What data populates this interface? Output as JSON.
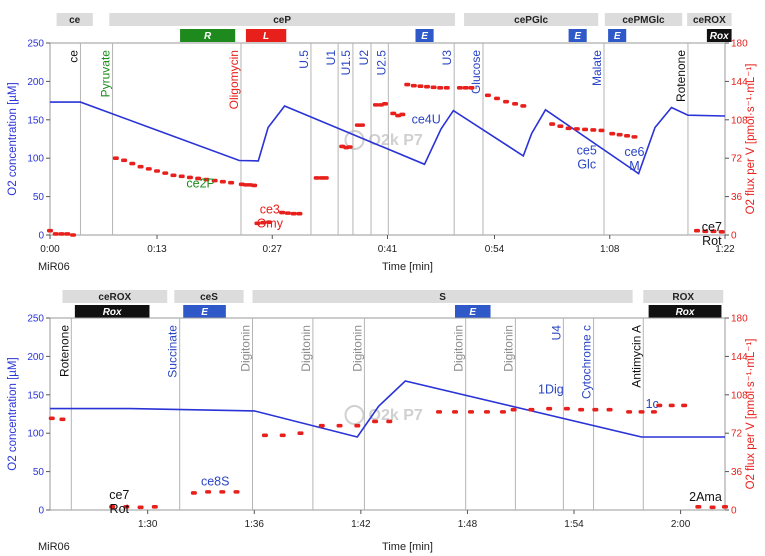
{
  "colors": {
    "o2_line": "#2a33d6",
    "flux_points": "#e8201c",
    "blue_text": "#2a45c4",
    "red_text": "#e8201c",
    "green_text": "#1e8f1e",
    "gray_text": "#8c8c8c",
    "black_text": "#111111",
    "bar_gray": "#dcdcdc",
    "bar_green": "#1e8a1e",
    "bar_red": "#e8201c",
    "bar_blue": "#2f58c8",
    "bar_black": "#111111",
    "event_line": "#b4b4b4"
  },
  "watermark": "O2k P7",
  "chart_data": [
    {
      "type": "line",
      "medium": "MiR06",
      "xlabel": "Time [min]",
      "ylabel_left": "O2 concentration [µM]",
      "ylabel_right": "O2 flux per V [pmol·s⁻¹·mL⁻¹]",
      "ylim_left": [
        0,
        250
      ],
      "ylim_right": [
        0,
        180
      ],
      "xlim": [
        0,
        82
      ],
      "x_ticks": [
        {
          "v": 0,
          "label": "0:00"
        },
        {
          "v": 13,
          "label": "0:13"
        },
        {
          "v": 27,
          "label": "0:27"
        },
        {
          "v": 41,
          "label": "0:41"
        },
        {
          "v": 54,
          "label": "0:54"
        },
        {
          "v": 68,
          "label": "1:08"
        },
        {
          "v": 82,
          "label": "1:22"
        }
      ],
      "y_ticks_left": [
        0,
        50,
        100,
        150,
        200,
        250
      ],
      "y_ticks_right": [
        0,
        36,
        72,
        108,
        144,
        180
      ],
      "states": [
        {
          "label": "ce",
          "start": 0.8,
          "end": 5.2
        },
        {
          "label": "ceP",
          "start": 7.2,
          "end": 49.2
        },
        {
          "label": "cePGlc",
          "start": 50.3,
          "end": 66.6
        },
        {
          "label": "cePMGlc",
          "start": 67.4,
          "end": 76.8
        },
        {
          "label": "ceROX",
          "start": 77.4,
          "end": 82.8
        }
      ],
      "tags": [
        {
          "label": "R",
          "start": 15.8,
          "end": 22.5,
          "color": "#1e8a1e"
        },
        {
          "label": "L",
          "start": 23.8,
          "end": 28.7,
          "color": "#e8201c"
        },
        {
          "label": "E",
          "start": 44.4,
          "end": 46.6,
          "color": "#2f58c8"
        },
        {
          "label": "E",
          "start": 63.0,
          "end": 65.2,
          "color": "#2f58c8"
        },
        {
          "label": "E",
          "start": 67.8,
          "end": 70.0,
          "color": "#2f58c8"
        },
        {
          "label": "Rox",
          "start": 79.8,
          "end": 82.8,
          "color": "#111111"
        }
      ],
      "events": [
        {
          "t": 3.7,
          "label": "ce",
          "color": "#111111"
        },
        {
          "t": 7.6,
          "label": "Pyruvate",
          "color": "#1e8f1e"
        },
        {
          "t": 23.2,
          "label": "Oligomycin",
          "color": "#e8201c"
        },
        {
          "t": 31.7,
          "label": "U.5",
          "color": "#2a45c4"
        },
        {
          "t": 35.0,
          "label": "U1",
          "color": "#2a45c4"
        },
        {
          "t": 36.8,
          "label": "U1.5",
          "color": "#2a45c4"
        },
        {
          "t": 39.0,
          "label": "U2",
          "color": "#2a45c4"
        },
        {
          "t": 41.1,
          "label": "U2.5",
          "color": "#2a45c4"
        },
        {
          "t": 49.1,
          "label": "U3",
          "color": "#2a45c4"
        },
        {
          "t": 52.6,
          "label": "Glucose",
          "color": "#2a45c4"
        },
        {
          "t": 67.3,
          "label": "Malate",
          "color": "#2a45c4"
        },
        {
          "t": 77.5,
          "label": "Rotenone",
          "color": "#111111"
        }
      ],
      "o2_series": [
        [
          0,
          173
        ],
        [
          3.7,
          173
        ],
        [
          23,
          97
        ],
        [
          25.3,
          96.5
        ],
        [
          26.5,
          140
        ],
        [
          28.5,
          168
        ],
        [
          45.5,
          92
        ],
        [
          47.5,
          138
        ],
        [
          49,
          162
        ],
        [
          57.5,
          103
        ],
        [
          58.5,
          132
        ],
        [
          60.2,
          163
        ],
        [
          71.5,
          80
        ],
        [
          73.5,
          140
        ],
        [
          75.5,
          166
        ],
        [
          77.5,
          156
        ],
        [
          82,
          155
        ]
      ],
      "flux_series": [
        {
          "x": [
            0,
            0.7,
            1.4,
            2.1,
            2.8
          ],
          "y": [
            4,
            1,
            1,
            1,
            0
          ]
        },
        {
          "x": [
            8,
            9,
            10,
            11,
            12,
            13,
            14,
            15,
            16,
            17,
            18,
            19,
            20,
            21,
            22
          ],
          "y": [
            72,
            70,
            67,
            64,
            62,
            60,
            58,
            56,
            55,
            54,
            53,
            52,
            51,
            50,
            49
          ]
        },
        {
          "x": [
            23.3,
            23.8,
            24.3,
            24.8
          ],
          "y": [
            47.5,
            47,
            47,
            46.5
          ]
        },
        {
          "x": [
            25.2,
            25.9,
            26.6
          ],
          "y": [
            11,
            11.5,
            12
          ]
        },
        {
          "x": [
            28.2,
            28.9,
            29.6,
            30.3
          ],
          "y": [
            21,
            20.5,
            20,
            20
          ]
        },
        {
          "x": [
            32.4,
            33.0,
            33.5
          ],
          "y": [
            53.5,
            53.5,
            53.5
          ]
        },
        {
          "x": [
            35.5,
            36.0,
            36.4
          ],
          "y": [
            83,
            82,
            82.5
          ]
        },
        {
          "x": [
            37.4,
            37.9
          ],
          "y": [
            103,
            103
          ]
        },
        {
          "x": [
            39.6,
            40.2,
            40.7
          ],
          "y": [
            122,
            122,
            123
          ]
        },
        {
          "x": [
            41.7,
            42.3,
            42.8
          ],
          "y": [
            114,
            112,
            113
          ]
        },
        {
          "x": [
            43.4,
            44.2,
            45.0,
            45.8,
            46.6,
            47.4,
            48.2
          ],
          "y": [
            141,
            140,
            139.5,
            139,
            138.5,
            138,
            138
          ]
        },
        {
          "x": [
            49.8,
            50.5,
            51.2
          ],
          "y": [
            138,
            138,
            138
          ]
        },
        {
          "x": [
            53.2,
            54.3,
            55.4,
            56.5,
            57.5
          ],
          "y": [
            131,
            128,
            125,
            123,
            121
          ]
        },
        {
          "x": [
            61,
            62,
            63,
            64,
            65,
            66,
            67
          ],
          "y": [
            104,
            102,
            100,
            99.5,
            99,
            98.5,
            98
          ]
        },
        {
          "x": [
            68.3,
            69.2,
            70.1,
            71.0
          ],
          "y": [
            95,
            94,
            93,
            92
          ]
        },
        {
          "x": [
            78.6,
            79.6,
            80.6,
            81.6
          ],
          "y": [
            4,
            3.5,
            3.5,
            3
          ]
        }
      ],
      "annotations": [
        {
          "t": 18.3,
          "v": 62,
          "lines": [
            "ce2P"
          ],
          "color": "#1e8f1e"
        },
        {
          "t": 26.7,
          "v": 28,
          "lines": [
            "ce3",
            "Omy"
          ],
          "color": "#e8201c"
        },
        {
          "t": 45.7,
          "v": 145,
          "lines": [
            "ce4U"
          ],
          "color": "#2a45c4"
        },
        {
          "t": 65.2,
          "v": 105,
          "lines": [
            "ce5",
            "Glc"
          ],
          "color": "#2a45c4"
        },
        {
          "t": 71.0,
          "v": 103,
          "lines": [
            "ce6",
            "M"
          ],
          "color": "#2a45c4"
        },
        {
          "t": 80.4,
          "v": 5,
          "lines": [
            "ce7",
            "Rot"
          ],
          "color": "#111111"
        }
      ]
    },
    {
      "type": "line",
      "medium": "MiR06",
      "xlabel": "Time [min]",
      "ylabel_left": "O2 concentration [µM]",
      "ylabel_right": "O2 flux per V [pmol·s⁻¹·mL⁻¹]",
      "ylim_left": [
        0,
        250
      ],
      "ylim_right": [
        0,
        180
      ],
      "xlim": [
        84.5,
        122.5
      ],
      "x_ticks": [
        {
          "v": 90,
          "label": "1:30"
        },
        {
          "v": 96,
          "label": "1:36"
        },
        {
          "v": 102,
          "label": "1:42"
        },
        {
          "v": 108,
          "label": "1:48"
        },
        {
          "v": 114,
          "label": "1:54"
        },
        {
          "v": 120,
          "label": "2:00"
        }
      ],
      "y_ticks_left": [
        0,
        50,
        100,
        150,
        200,
        250
      ],
      "y_ticks_right": [
        0,
        36,
        72,
        108,
        144,
        180
      ],
      "states": [
        {
          "label": "ceROX",
          "start": 85.2,
          "end": 91.1
        },
        {
          "label": "ceS",
          "start": 91.5,
          "end": 95.4
        },
        {
          "label": "S",
          "start": 95.9,
          "end": 117.3
        },
        {
          "label": "ROX",
          "start": 117.9,
          "end": 122.4
        }
      ],
      "tags": [
        {
          "label": "Rox",
          "start": 85.9,
          "end": 90.1,
          "color": "#111111"
        },
        {
          "label": "E",
          "start": 92.0,
          "end": 94.4,
          "color": "#2f58c8"
        },
        {
          "label": "E",
          "start": 107.3,
          "end": 109.3,
          "color": "#2f58c8"
        },
        {
          "label": "Rox",
          "start": 118.2,
          "end": 122.3,
          "color": "#111111"
        }
      ],
      "events": [
        {
          "t": 85.7,
          "label": "Rotenone",
          "color": "#111111"
        },
        {
          "t": 91.8,
          "label": "Succinate",
          "color": "#2a45c4"
        },
        {
          "t": 95.9,
          "label": "Digitonin",
          "color": "#8c8c8c"
        },
        {
          "t": 99.3,
          "label": "Digitonin",
          "color": "#8c8c8c"
        },
        {
          "t": 102.2,
          "label": "Digitonin",
          "color": "#8c8c8c"
        },
        {
          "t": 107.9,
          "label": "Digitonin",
          "color": "#8c8c8c"
        },
        {
          "t": 110.7,
          "label": "Digitonin",
          "color": "#8c8c8c"
        },
        {
          "t": 113.4,
          "label": "U4",
          "color": "#2a45c4"
        },
        {
          "t": 115.1,
          "label": "Cytochrome c",
          "color": "#2a45c4"
        },
        {
          "t": 117.9,
          "label": "Antimycin A",
          "color": "#111111"
        }
      ],
      "o2_series": [
        [
          84.5,
          132
        ],
        [
          89,
          132
        ],
        [
          96,
          129
        ],
        [
          101.8,
          95
        ],
        [
          103,
          135
        ],
        [
          104.5,
          168
        ],
        [
          117.8,
          95
        ],
        [
          122.5,
          95
        ]
      ],
      "flux_series": [
        {
          "x": [
            84.6,
            85.2
          ],
          "y": [
            86,
            85
          ]
        },
        {
          "x": [
            88,
            88.8,
            89.6,
            90.4
          ],
          "y": [
            3,
            3,
            2.5,
            3
          ]
        },
        {
          "x": [
            92.6,
            93.4,
            94.2,
            95.0
          ],
          "y": [
            16,
            17,
            17,
            17
          ]
        },
        {
          "x": [
            96.6,
            97.6,
            98.6
          ],
          "y": [
            70,
            70,
            72
          ]
        },
        {
          "x": [
            99.8,
            100.8,
            101.8
          ],
          "y": [
            79,
            79,
            79
          ]
        },
        {
          "x": [
            102.8,
            103.6
          ],
          "y": [
            83,
            83
          ]
        },
        {
          "x": [
            106.4,
            107.3,
            108.2,
            109.1,
            110.0
          ],
          "y": [
            92,
            92,
            92,
            92,
            92
          ]
        },
        {
          "x": [
            110.6,
            111.6,
            112.6,
            113.6
          ],
          "y": [
            94,
            94,
            95,
            95
          ]
        },
        {
          "x": [
            114.4,
            115.2,
            116.0
          ],
          "y": [
            94,
            94,
            94
          ]
        },
        {
          "x": [
            117.1,
            117.8,
            118.5
          ],
          "y": [
            92,
            92,
            92
          ]
        },
        {
          "x": [
            118.8,
            119.5,
            120.2
          ],
          "y": [
            98,
            98,
            98
          ]
        },
        {
          "x": [
            121.0,
            121.8,
            122.5
          ],
          "y": [
            3,
            2.5,
            3
          ]
        }
      ],
      "annotations": [
        {
          "t": 88.4,
          "v": 14,
          "lines": [
            "ce7",
            "Rot"
          ],
          "color": "#111111"
        },
        {
          "t": 93.8,
          "v": 32,
          "lines": [
            "ce8S"
          ],
          "color": "#2a45c4"
        },
        {
          "t": 112.7,
          "v": 152,
          "lines": [
            "1Dig"
          ],
          "color": "#2a45c4"
        },
        {
          "t": 118.4,
          "v": 133,
          "lines": [
            "1c"
          ],
          "color": "#2a45c4"
        },
        {
          "t": 121.4,
          "v": 12,
          "lines": [
            "2Ama"
          ],
          "color": "#111111"
        }
      ]
    }
  ]
}
